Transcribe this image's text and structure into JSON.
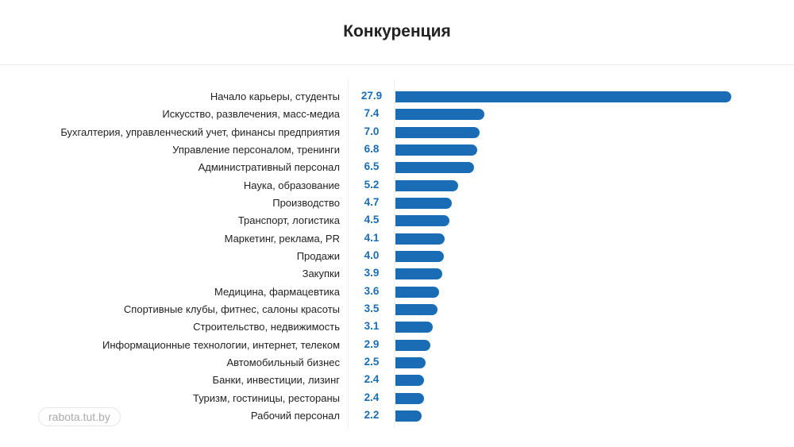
{
  "chart_data": {
    "type": "bar",
    "orientation": "horizontal",
    "title": "Конкуренция",
    "categories": [
      "Начало карьеры, студенты",
      "Искусство, развлечения, масс-медиа",
      "Бухгалтерия, управленческий учет, финансы предприятия",
      "Управление персоналом, тренинги",
      "Административный персонал",
      "Наука, образование",
      "Производство",
      "Транспорт, логистика",
      "Маркетинг, реклама, PR",
      "Продажи",
      "Закупки",
      "Медицина, фармацевтика",
      "Спортивные клубы, фитнес, салоны красоты",
      "Строительство, недвижимость",
      "Информационные технологии, интернет, телеком",
      "Автомобильный бизнес",
      "Банки, инвестиции, лизинг",
      "Туризм, гостиницы, рестораны",
      "Рабочий персонал"
    ],
    "values": [
      27.9,
      7.4,
      7.0,
      6.8,
      6.5,
      5.2,
      4.7,
      4.5,
      4.1,
      4.0,
      3.9,
      3.6,
      3.5,
      3.1,
      2.9,
      2.5,
      2.4,
      2.4,
      2.2
    ],
    "xlim": [
      0,
      27.9
    ],
    "grid": false,
    "bar_color": "#1a6db5"
  },
  "brand": "rabota.tut.by"
}
